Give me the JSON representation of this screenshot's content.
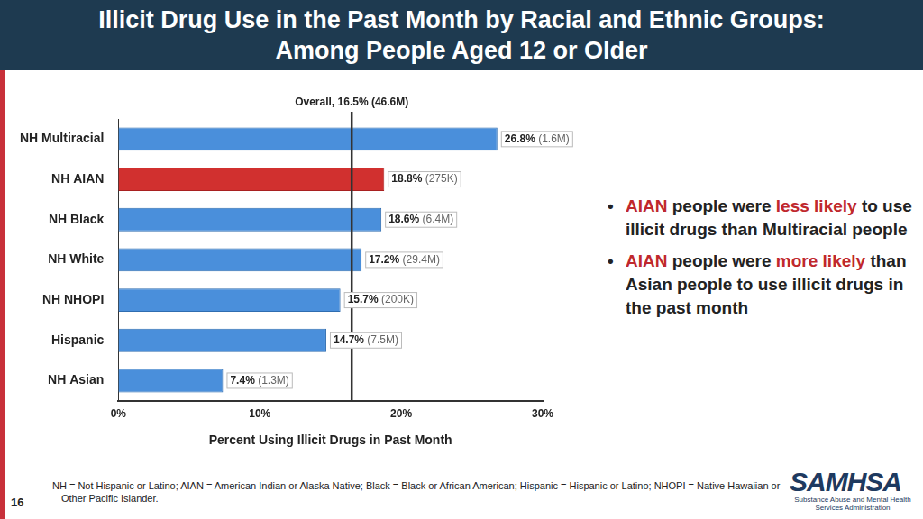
{
  "header": {
    "title_lines": [
      "Illicit Drug Use in the Past Month by Racial and Ethnic Groups:",
      "Among People Aged 12 or Older"
    ]
  },
  "chart_data": {
    "type": "bar",
    "orientation": "horizontal",
    "categories": [
      "NH Multiracial",
      "NH AIAN",
      "NH Black",
      "NH White",
      "NH NHOPI",
      "Hispanic",
      "NH Asian"
    ],
    "values": [
      26.8,
      18.8,
      18.6,
      17.2,
      15.7,
      14.7,
      7.4
    ],
    "value_labels": [
      "26.8% (1.6M)",
      "18.8% (275K)",
      "18.6% (6.4M)",
      "17.2% (29.4M)",
      "15.7% (200K)",
      "14.7% (7.5M)",
      "7.4% (1.3M)"
    ],
    "colors": [
      "#4a8fdb",
      "#d1302f",
      "#4a8fdb",
      "#4a8fdb",
      "#4a8fdb",
      "#4a8fdb",
      "#4a8fdb"
    ],
    "data_labels": true,
    "xlabel": "Percent Using Illicit Drugs in Past Month",
    "xlim": [
      0,
      30
    ],
    "xticks": [
      {
        "value": 0,
        "label": "0%"
      },
      {
        "value": 10,
        "label": "10%"
      },
      {
        "value": 20,
        "label": "20%"
      },
      {
        "value": 30,
        "label": "30%"
      }
    ],
    "reference_line": {
      "value": 16.5,
      "label": "Overall, 16.5% (46.6M)"
    },
    "grid": false,
    "legend": "none"
  },
  "bullets": [
    [
      {
        "text": "AIAN",
        "color": "#c0282d"
      },
      {
        "text": " people were "
      },
      {
        "text": "less likely",
        "color": "#c0282d"
      },
      {
        "text": " to use illicit drugs than Multiracial people"
      }
    ],
    [
      {
        "text": "AIAN",
        "color": "#c0282d"
      },
      {
        "text": " people were "
      },
      {
        "text": "more likely",
        "color": "#c0282d"
      },
      {
        "text": " than Asian people to use illicit drugs in the past month"
      }
    ]
  ],
  "footnote": "NH = Not Hispanic or Latino; AIAN = American Indian or Alaska Native; Black = Black or African American; Hispanic = Hispanic or Latino; NHOPI = Native Hawaiian or Other Pacific Islander.",
  "page_number": "16",
  "logo": {
    "name": "SAMHSA",
    "subtitle": "Substance Abuse and Mental Health Services Administration"
  }
}
